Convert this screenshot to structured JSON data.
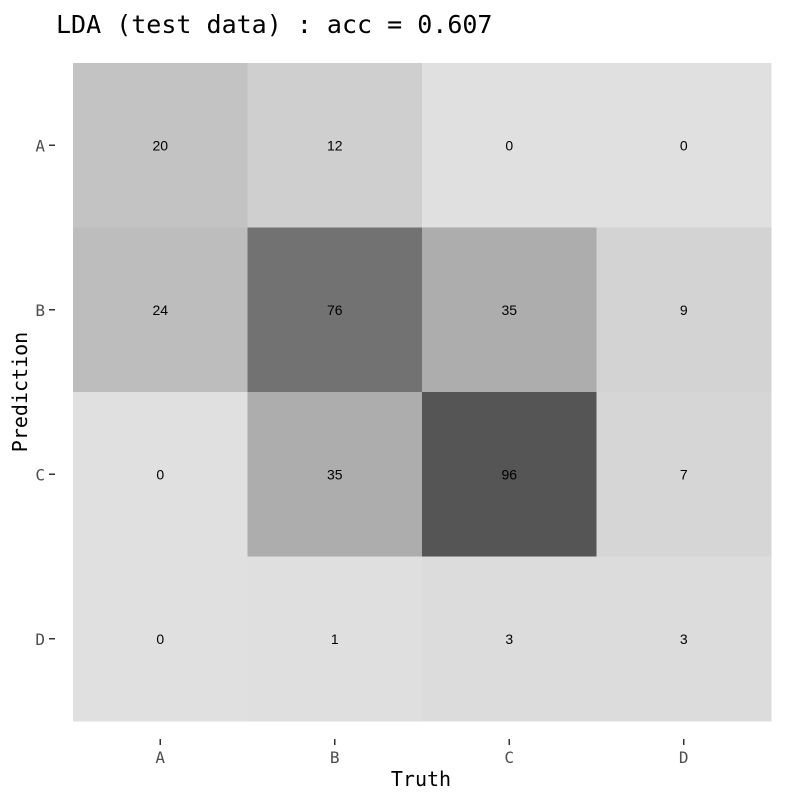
{
  "chart_data": {
    "type": "heatmap",
    "title": "LDA (test data) : acc = 0.607",
    "xlabel": "Truth",
    "ylabel": "Prediction",
    "x_categories": [
      "A",
      "B",
      "C",
      "D"
    ],
    "y_categories": [
      "A",
      "B",
      "C",
      "D"
    ],
    "values": [
      [
        20,
        12,
        0,
        0
      ],
      [
        24,
        76,
        35,
        9
      ],
      [
        0,
        35,
        96,
        7
      ],
      [
        0,
        1,
        3,
        3
      ]
    ],
    "color_low": "#e0e0e0",
    "color_high": "#555555",
    "background": "#ebebeb",
    "grid": false,
    "legend": "none"
  }
}
